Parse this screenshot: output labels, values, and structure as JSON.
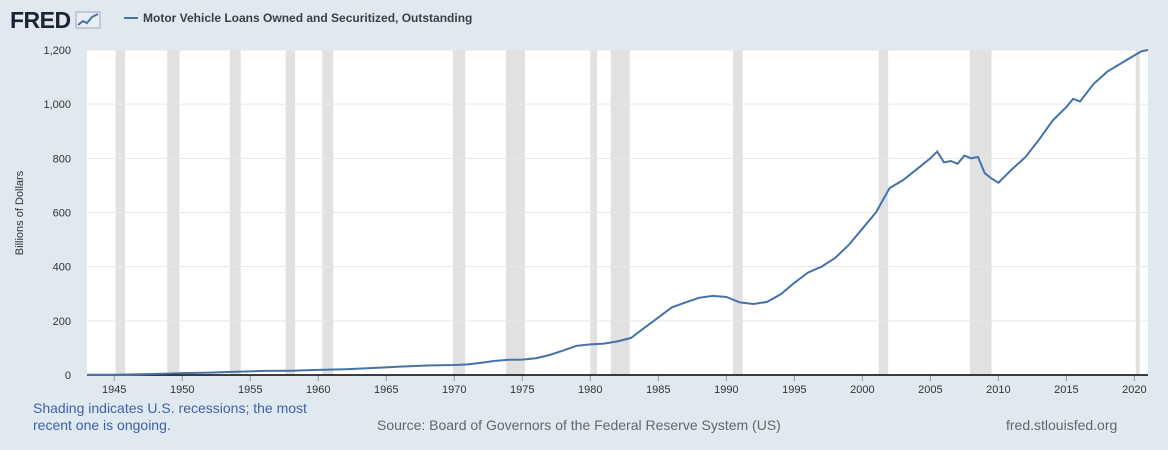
{
  "header": {
    "logo_text": "FRED",
    "legend_label": "Motor Vehicle Loans Owned and Securitized, Outstanding",
    "series_color": "#4572a7"
  },
  "footer": {
    "note_line1": "Shading indicates U.S. recessions; the most",
    "note_line2": "recent one is ongoing.",
    "source": "Source: Board of Governors of the Federal Reserve System (US)",
    "site": "fred.stlouisfed.org"
  },
  "chart_data": {
    "type": "line",
    "title": "Motor Vehicle Loans Owned and Securitized, Outstanding",
    "xlabel": "",
    "ylabel": "Billions of Dollars",
    "xlim": [
      1943.0,
      2021.0
    ],
    "ylim": [
      0,
      1200
    ],
    "y_ticks": [
      0,
      200,
      400,
      600,
      800,
      1000,
      1200
    ],
    "y_tick_labels": [
      "0",
      "200",
      "400",
      "600",
      "800",
      "1,000",
      "1,200"
    ],
    "x_ticks": [
      1945,
      1950,
      1955,
      1960,
      1965,
      1970,
      1975,
      1980,
      1985,
      1990,
      1995,
      2000,
      2005,
      2010,
      2015,
      2020
    ],
    "x_tick_labels": [
      "1945",
      "1950",
      "1955",
      "1960",
      "1965",
      "1970",
      "1975",
      "1980",
      "1985",
      "1990",
      "1995",
      "2000",
      "2005",
      "2010",
      "2015",
      "2020"
    ],
    "grid": true,
    "recessions": [
      [
        1945.1,
        1945.8
      ],
      [
        1948.9,
        1949.8
      ],
      [
        1953.5,
        1954.3
      ],
      [
        1957.6,
        1958.3
      ],
      [
        1960.3,
        1961.1
      ],
      [
        1969.9,
        1970.8
      ],
      [
        1973.8,
        1975.2
      ],
      [
        1980.0,
        1980.5
      ],
      [
        1981.5,
        1982.9
      ],
      [
        1990.5,
        1991.2
      ],
      [
        2001.2,
        2001.9
      ],
      [
        2007.9,
        2009.5
      ],
      [
        2020.1,
        2020.4
      ]
    ],
    "series": [
      {
        "name": "Motor Vehicle Loans Owned and Securitized, Outstanding",
        "x": [
          1943.0,
          1945.0,
          1947.0,
          1949.0,
          1950.0,
          1952.0,
          1954.0,
          1956.0,
          1958.0,
          1960.0,
          1962.0,
          1964.0,
          1966.0,
          1968.0,
          1970.0,
          1971.0,
          1972.0,
          1973.0,
          1974.0,
          1975.0,
          1976.0,
          1977.0,
          1978.0,
          1979.0,
          1980.0,
          1981.0,
          1982.0,
          1983.0,
          1984.0,
          1985.0,
          1986.0,
          1987.0,
          1988.0,
          1989.0,
          1990.0,
          1991.0,
          1992.0,
          1993.0,
          1994.0,
          1995.0,
          1996.0,
          1997.0,
          1998.0,
          1999.0,
          2000.0,
          2001.0,
          2002.0,
          2003.0,
          2004.0,
          2005.0,
          2005.5,
          2006.0,
          2006.5,
          2007.0,
          2007.5,
          2008.0,
          2008.5,
          2009.0,
          2009.5,
          2010.0,
          2011.0,
          2012.0,
          2013.0,
          2014.0,
          2015.0,
          2015.5,
          2016.0,
          2017.0,
          2018.0,
          2019.0,
          2020.0,
          2020.5,
          2021.0
        ],
        "values": [
          1,
          1,
          3,
          5,
          7,
          9,
          12,
          15,
          16,
          19,
          21,
          26,
          31,
          35,
          37,
          39,
          45,
          52,
          56,
          57,
          62,
          74,
          90,
          108,
          113,
          116,
          124,
          137,
          175,
          212,
          250,
          268,
          285,
          292,
          288,
          268,
          262,
          270,
          298,
          340,
          378,
          400,
          432,
          480,
          540,
          600,
          690,
          720,
          760,
          800,
          825,
          785,
          790,
          780,
          810,
          800,
          805,
          745,
          725,
          710,
          760,
          805,
          870,
          940,
          990,
          1020,
          1010,
          1075,
          1120,
          1150,
          1180,
          1195,
          1200
        ]
      }
    ]
  }
}
